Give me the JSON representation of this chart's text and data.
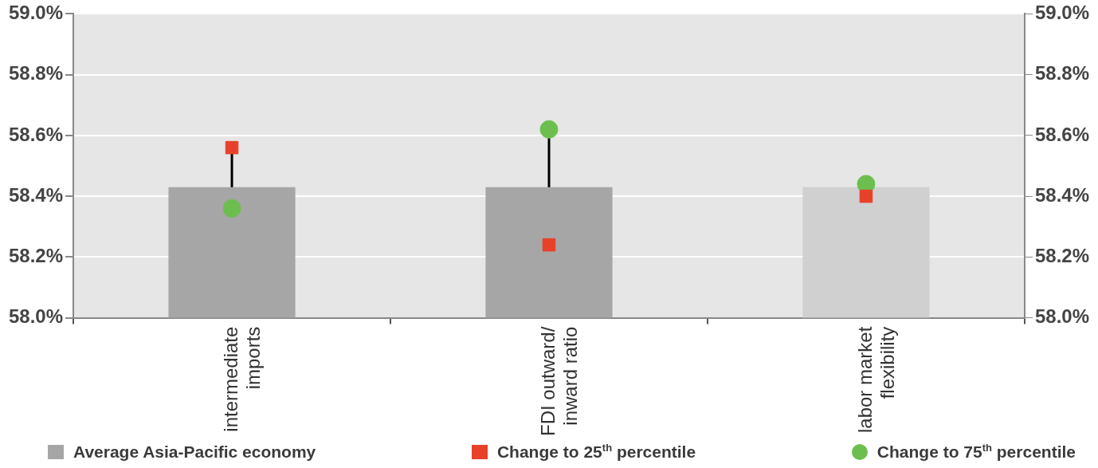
{
  "chart_data": {
    "type": "bar",
    "categories": [
      "intermediate imports",
      "FDI outward/ inward ratio",
      "labor market flexibility"
    ],
    "series": [
      {
        "name": "Average Asia-Pacific economy",
        "color": "#a6a6a6",
        "colors": [
          "#a6a6a6",
          "#a6a6a6",
          "#d0d0d0"
        ],
        "values": [
          58.43,
          58.43,
          58.43
        ]
      },
      {
        "name": "Change to 25$^{th}$ percentile",
        "type": "scatter",
        "marker": "square",
        "color": "#e8412a",
        "x": [
          "intermediate imports",
          "FDI outward/ inward ratio",
          "labor market flexibility"
        ],
        "values": [
          58.56,
          58.24,
          58.4
        ]
      },
      {
        "name": "Change to 75$^{th}$ percentile",
        "type": "scatter",
        "marker": "circle",
        "color": "#6cbf4f",
        "x": [
          "intermediate imports",
          "FDI outward/ inward ratio",
          "labor market flexibility"
        ],
        "values": [
          58.36,
          58.62,
          58.44
        ]
      }
    ],
    "ylim": [
      58.0,
      59.0
    ],
    "yticks": [
      {
        "value": 58.0,
        "label": "58.0%"
      },
      {
        "value": 58.2,
        "label": "58.2%"
      },
      {
        "value": 58.4,
        "label": "58.4%"
      },
      {
        "value": 58.6,
        "label": "58.6%"
      },
      {
        "value": 58.8,
        "label": "58.8%"
      },
      {
        "value": 59.0,
        "label": "59.0%"
      }
    ],
    "y2lim": [
      58.0,
      59.0
    ],
    "y2ticks": [
      {
        "value": 58.0,
        "label": "58.0%"
      },
      {
        "value": 58.2,
        "label": "58.2%"
      },
      {
        "value": 58.4,
        "label": "58.4%"
      },
      {
        "value": 58.6,
        "label": "58.6%"
      },
      {
        "value": 58.8,
        "label": "58.8%"
      },
      {
        "value": 59.0,
        "label": "59.0%"
      }
    ],
    "grid": "y",
    "legend": "bottom"
  }
}
